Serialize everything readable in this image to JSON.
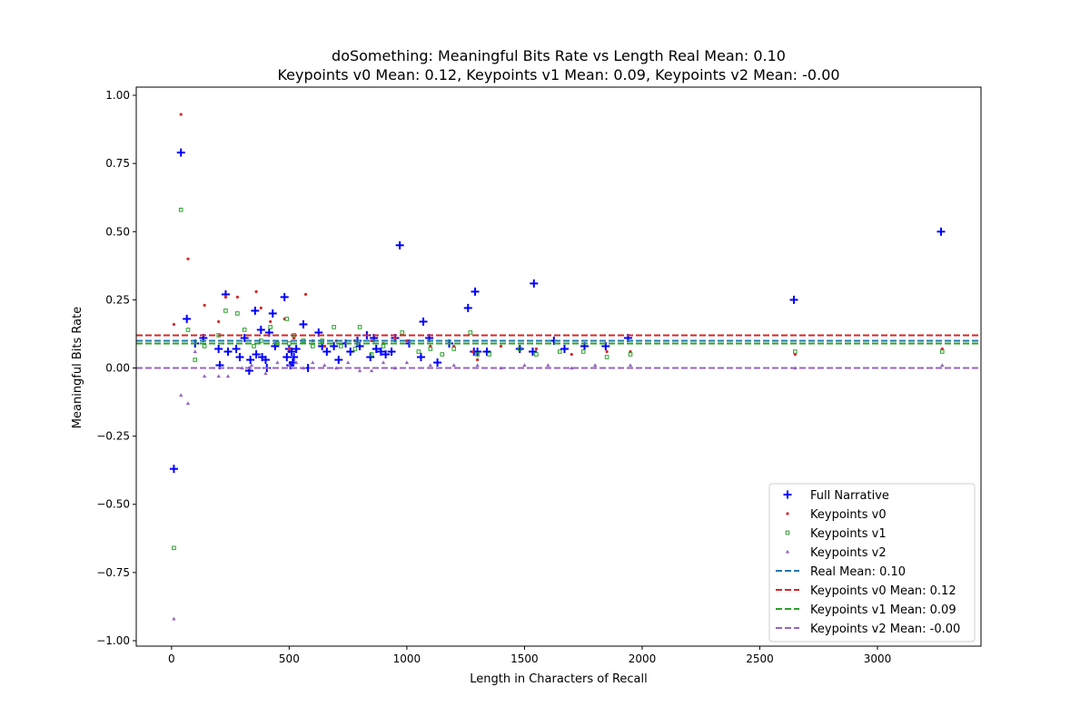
{
  "chart_data": {
    "type": "scatter",
    "title_line1": "doSomething: Meaningful Bits Rate vs Length Real Mean: 0.10",
    "title_line2": "Keypoints v0 Mean: 0.12, Keypoints v1 Mean: 0.09, Keypoints v2 Mean: -0.00",
    "xlabel": "Length in Characters of Recall",
    "ylabel": "Meaningful Bits Rate",
    "xlim": [
      -150,
      3440
    ],
    "ylim": [
      -1.02,
      1.03
    ],
    "xticks": [
      0,
      500,
      1000,
      1500,
      2000,
      2500,
      3000
    ],
    "xtick_labels": [
      "0",
      "500",
      "1000",
      "1500",
      "2000",
      "2500",
      "3000"
    ],
    "yticks": [
      1.0,
      0.75,
      0.5,
      0.25,
      0.0,
      -0.25,
      -0.5,
      -0.75,
      -1.0
    ],
    "ytick_labels": [
      "1.00",
      "0.75",
      "0.50",
      "0.25",
      "0.00",
      "−0.25",
      "−0.50",
      "−0.75",
      "−1.00"
    ],
    "grid": false,
    "legend_position": "lower-right",
    "series": [
      {
        "name": "Full Narrative",
        "color": "#0000ff",
        "marker": "plus",
        "points": [
          [
            10,
            -0.37
          ],
          [
            40,
            0.79
          ],
          [
            65,
            0.18
          ],
          [
            100,
            0.09
          ],
          [
            135,
            0.11
          ],
          [
            200,
            0.07
          ],
          [
            205,
            0.01
          ],
          [
            230,
            0.27
          ],
          [
            240,
            0.06
          ],
          [
            275,
            0.07
          ],
          [
            290,
            0.04
          ],
          [
            310,
            0.11
          ],
          [
            330,
            -0.01
          ],
          [
            335,
            0.03
          ],
          [
            355,
            0.21
          ],
          [
            360,
            0.05
          ],
          [
            380,
            0.14
          ],
          [
            385,
            0.04
          ],
          [
            400,
            0.03
          ],
          [
            405,
            0.0
          ],
          [
            415,
            0.13
          ],
          [
            430,
            0.2
          ],
          [
            440,
            0.08
          ],
          [
            480,
            0.26
          ],
          [
            490,
            0.04
          ],
          [
            500,
            0.07
          ],
          [
            505,
            0.01
          ],
          [
            510,
            0.06
          ],
          [
            515,
            0.02
          ],
          [
            520,
            0.04
          ],
          [
            530,
            0.07
          ],
          [
            560,
            0.16
          ],
          [
            580,
            0.0
          ],
          [
            625,
            0.13
          ],
          [
            640,
            0.08
          ],
          [
            660,
            0.06
          ],
          [
            690,
            0.08
          ],
          [
            710,
            0.03
          ],
          [
            740,
            0.09
          ],
          [
            760,
            0.06
          ],
          [
            790,
            0.1
          ],
          [
            800,
            0.08
          ],
          [
            830,
            0.12
          ],
          [
            845,
            0.04
          ],
          [
            860,
            0.11
          ],
          [
            870,
            0.07
          ],
          [
            890,
            0.06
          ],
          [
            910,
            0.05
          ],
          [
            935,
            0.06
          ],
          [
            950,
            0.11
          ],
          [
            970,
            0.45
          ],
          [
            1010,
            0.09
          ],
          [
            1060,
            0.04
          ],
          [
            1070,
            0.17
          ],
          [
            1095,
            0.11
          ],
          [
            1130,
            0.02
          ],
          [
            1180,
            0.09
          ],
          [
            1260,
            0.22
          ],
          [
            1285,
            0.06
          ],
          [
            1290,
            0.28
          ],
          [
            1300,
            0.06
          ],
          [
            1340,
            0.06
          ],
          [
            1480,
            0.07
          ],
          [
            1535,
            0.06
          ],
          [
            1540,
            0.31
          ],
          [
            1625,
            0.1
          ],
          [
            1670,
            0.07
          ],
          [
            1755,
            0.08
          ],
          [
            1845,
            0.08
          ],
          [
            1940,
            0.11
          ],
          [
            2645,
            0.25
          ],
          [
            3270,
            0.5
          ]
        ]
      },
      {
        "name": "Keypoints v0",
        "color": "#d62728",
        "marker": "point",
        "points": [
          [
            10,
            0.16
          ],
          [
            40,
            0.93
          ],
          [
            70,
            0.4
          ],
          [
            140,
            0.23
          ],
          [
            200,
            0.17
          ],
          [
            230,
            0.26
          ],
          [
            280,
            0.26
          ],
          [
            360,
            0.28
          ],
          [
            380,
            0.22
          ],
          [
            420,
            0.17
          ],
          [
            480,
            0.18
          ],
          [
            500,
            0.07
          ],
          [
            520,
            0.11
          ],
          [
            570,
            0.27
          ],
          [
            600,
            0.1
          ],
          [
            650,
            0.08
          ],
          [
            700,
            0.1
          ],
          [
            780,
            0.1
          ],
          [
            850,
            0.1
          ],
          [
            900,
            0.09
          ],
          [
            950,
            0.11
          ],
          [
            1000,
            0.1
          ],
          [
            1100,
            0.08
          ],
          [
            1200,
            0.08
          ],
          [
            1280,
            0.06
          ],
          [
            1300,
            0.03
          ],
          [
            1400,
            0.08
          ],
          [
            1550,
            0.07
          ],
          [
            1700,
            0.05
          ],
          [
            1850,
            0.06
          ],
          [
            1950,
            0.06
          ],
          [
            2650,
            0.05
          ],
          [
            3275,
            0.07
          ]
        ]
      },
      {
        "name": "Keypoints v1",
        "color": "#2ca02c",
        "marker": "square",
        "points": [
          [
            10,
            -0.66
          ],
          [
            40,
            0.58
          ],
          [
            70,
            0.14
          ],
          [
            100,
            0.03
          ],
          [
            140,
            0.08
          ],
          [
            200,
            0.12
          ],
          [
            230,
            0.21
          ],
          [
            280,
            0.2
          ],
          [
            310,
            0.14
          ],
          [
            350,
            0.08
          ],
          [
            380,
            0.1
          ],
          [
            420,
            0.15
          ],
          [
            450,
            0.09
          ],
          [
            490,
            0.18
          ],
          [
            500,
            0.09
          ],
          [
            520,
            0.12
          ],
          [
            560,
            0.1
          ],
          [
            600,
            0.08
          ],
          [
            640,
            0.1
          ],
          [
            690,
            0.15
          ],
          [
            720,
            0.08
          ],
          [
            780,
            0.07
          ],
          [
            800,
            0.15
          ],
          [
            850,
            0.05
          ],
          [
            900,
            0.08
          ],
          [
            980,
            0.13
          ],
          [
            1050,
            0.06
          ],
          [
            1100,
            0.07
          ],
          [
            1150,
            0.05
          ],
          [
            1200,
            0.07
          ],
          [
            1270,
            0.13
          ],
          [
            1300,
            0.05
          ],
          [
            1350,
            0.05
          ],
          [
            1480,
            0.07
          ],
          [
            1550,
            0.05
          ],
          [
            1650,
            0.06
          ],
          [
            1750,
            0.06
          ],
          [
            1850,
            0.04
          ],
          [
            1950,
            0.05
          ],
          [
            2650,
            0.06
          ],
          [
            3275,
            0.06
          ]
        ]
      },
      {
        "name": "Keypoints v2",
        "color": "#9467bd",
        "marker": "triangle",
        "points": [
          [
            10,
            -0.92
          ],
          [
            40,
            -0.1
          ],
          [
            70,
            -0.13
          ],
          [
            100,
            0.06
          ],
          [
            140,
            -0.03
          ],
          [
            200,
            -0.03
          ],
          [
            240,
            -0.03
          ],
          [
            300,
            0.0
          ],
          [
            340,
            0.01
          ],
          [
            400,
            -0.02
          ],
          [
            450,
            0.02
          ],
          [
            500,
            0.01
          ],
          [
            530,
            0.02
          ],
          [
            560,
            0.0
          ],
          [
            600,
            0.02
          ],
          [
            650,
            0.01
          ],
          [
            700,
            0.0
          ],
          [
            750,
            0.02
          ],
          [
            800,
            -0.01
          ],
          [
            850,
            -0.01
          ],
          [
            900,
            0.02
          ],
          [
            950,
            0.0
          ],
          [
            1000,
            0.02
          ],
          [
            1100,
            0.01
          ],
          [
            1200,
            0.01
          ],
          [
            1300,
            0.01
          ],
          [
            1400,
            0.0
          ],
          [
            1500,
            0.01
          ],
          [
            1600,
            0.01
          ],
          [
            1700,
            0.0
          ],
          [
            1800,
            0.01
          ],
          [
            1950,
            0.01
          ],
          [
            2650,
            0.0
          ],
          [
            3275,
            0.01
          ]
        ]
      }
    ],
    "mean_lines": [
      {
        "name": "Real Mean: 0.10",
        "value": 0.1,
        "color": "#1f77b4"
      },
      {
        "name": "Keypoints v0 Mean: 0.12",
        "value": 0.12,
        "color": "#d62728"
      },
      {
        "name": "Keypoints v1 Mean: 0.09",
        "value": 0.09,
        "color": "#2ca02c"
      },
      {
        "name": "Keypoints v2 Mean: -0.00",
        "value": 0.0,
        "color": "#9467bd"
      }
    ]
  }
}
